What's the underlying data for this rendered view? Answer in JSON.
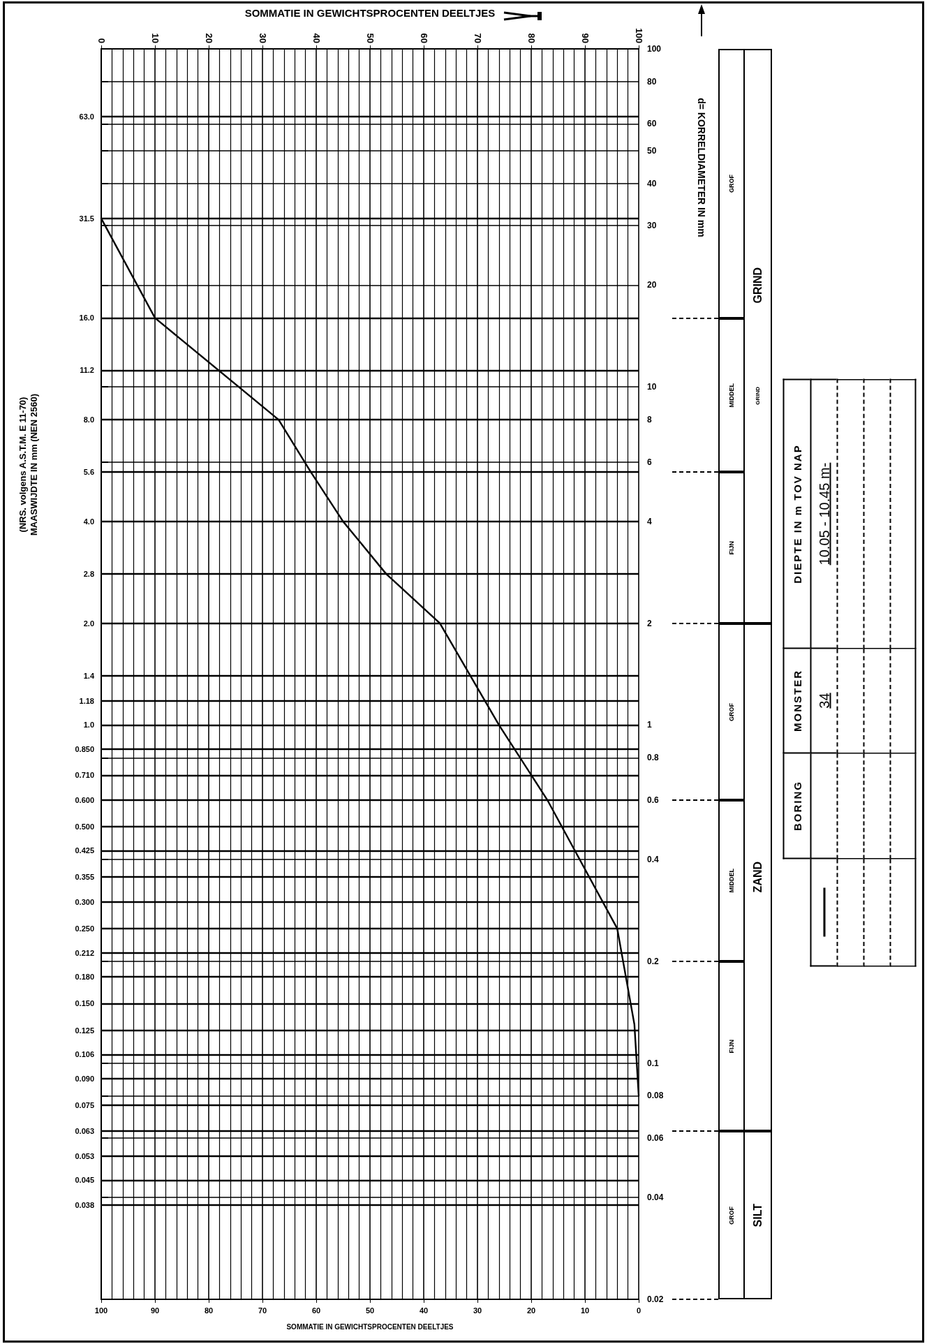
{
  "chart_data": {
    "type": "line",
    "xlabel": "SOMMATIE IN GEWICHTSPROCENTEN DEELTJES",
    "x2label": "SOMMATIE IN GEWICHTSPROCENTEN DEELTJES",
    "ylabel": "d= KORRELDIAMETER IN mm",
    "x": [
      0,
      10,
      33,
      39,
      45,
      53,
      63,
      74,
      83,
      96,
      99.2,
      100
    ],
    "series": [
      {
        "color": "#000000",
        "values": [
          31.5,
          16,
          8,
          5.6,
          4,
          2.8,
          2,
          1,
          0.6,
          0.25,
          0.13,
          0.08
        ]
      }
    ],
    "xlim": [
      0,
      100
    ],
    "xticks": [
      0,
      10,
      20,
      30,
      40,
      50,
      60,
      70,
      80,
      90,
      100
    ],
    "x2lim": [
      100,
      0
    ],
    "x2ticks": [
      100,
      90,
      80,
      70,
      60,
      50,
      40,
      30,
      20,
      10,
      0
    ],
    "ylim": [
      0.02,
      100
    ],
    "yticks": [
      0.02,
      0.04,
      0.06,
      0.08,
      0.1,
      0.2,
      0.4,
      0.6,
      0.8,
      1,
      2,
      4,
      6,
      8,
      10,
      20,
      30,
      40,
      50,
      60,
      80,
      100
    ],
    "ref_lines": [
      {
        "axis": "y",
        "value": 63,
        "label": "63.0"
      },
      {
        "axis": "y",
        "value": 31.5,
        "label": "31.5"
      },
      {
        "axis": "y",
        "value": 16,
        "label": "16.0"
      },
      {
        "axis": "y",
        "value": 11.2,
        "label": "11.2"
      },
      {
        "axis": "y",
        "value": 8,
        "label": "8.0"
      },
      {
        "axis": "y",
        "value": 5.6,
        "label": "5.6"
      },
      {
        "axis": "y",
        "value": 4,
        "label": "4.0"
      },
      {
        "axis": "y",
        "value": 2.8,
        "label": "2.8"
      },
      {
        "axis": "y",
        "value": 2,
        "label": "2.0"
      },
      {
        "axis": "y",
        "value": 1.4,
        "label": "1.4"
      },
      {
        "axis": "y",
        "value": 1.18,
        "label": "1.18"
      },
      {
        "axis": "y",
        "value": 1,
        "label": "1.0"
      },
      {
        "axis": "y",
        "value": 0.85,
        "label": "0.850"
      },
      {
        "axis": "y",
        "value": 0.71,
        "label": "0.710"
      },
      {
        "axis": "y",
        "value": 0.6,
        "label": "0.600"
      },
      {
        "axis": "y",
        "value": 0.5,
        "label": "0.500"
      },
      {
        "axis": "y",
        "value": 0.425,
        "label": "0.425"
      },
      {
        "axis": "y",
        "value": 0.355,
        "label": "0.355"
      },
      {
        "axis": "y",
        "value": 0.3,
        "label": "0.300"
      },
      {
        "axis": "y",
        "value": 0.25,
        "label": "0.250"
      },
      {
        "axis": "y",
        "value": 0.212,
        "label": "0.212"
      },
      {
        "axis": "y",
        "value": 0.18,
        "label": "0.180"
      },
      {
        "axis": "y",
        "value": 0.15,
        "label": "0.150"
      },
      {
        "axis": "y",
        "value": 0.125,
        "label": "0.125"
      },
      {
        "axis": "y",
        "value": 0.106,
        "label": "0.106"
      },
      {
        "axis": "y",
        "value": 0.09,
        "label": "0.090"
      },
      {
        "axis": "y",
        "value": 0.075,
        "label": "0.075"
      },
      {
        "axis": "y",
        "value": 0.063,
        "label": "0.063"
      },
      {
        "axis": "y",
        "value": 0.053,
        "label": "0.053"
      },
      {
        "axis": "y",
        "value": 0.045,
        "label": "0.045"
      },
      {
        "axis": "y",
        "value": 0.038,
        "label": "0.038"
      }
    ],
    "log": true,
    "grid": true,
    "marker": "none",
    "line_style": "solid",
    "annotations": [
      "(NRS. volgens A.S.T.M. E 11-70)\nMAASWIJDTE IN mm (NEN 2560)",
      "BORING",
      "MONSTER",
      "DIEPTE IN m TOV NAP",
      "34",
      "10.05 - 10.45 m-",
      "GRIND",
      "GROF",
      "MIDDEL",
      "FIJN",
      "GROF",
      "MIDDEL",
      "FIJN",
      "GROF",
      "GRIND",
      "ZAND",
      "SILT"
    ]
  }
}
